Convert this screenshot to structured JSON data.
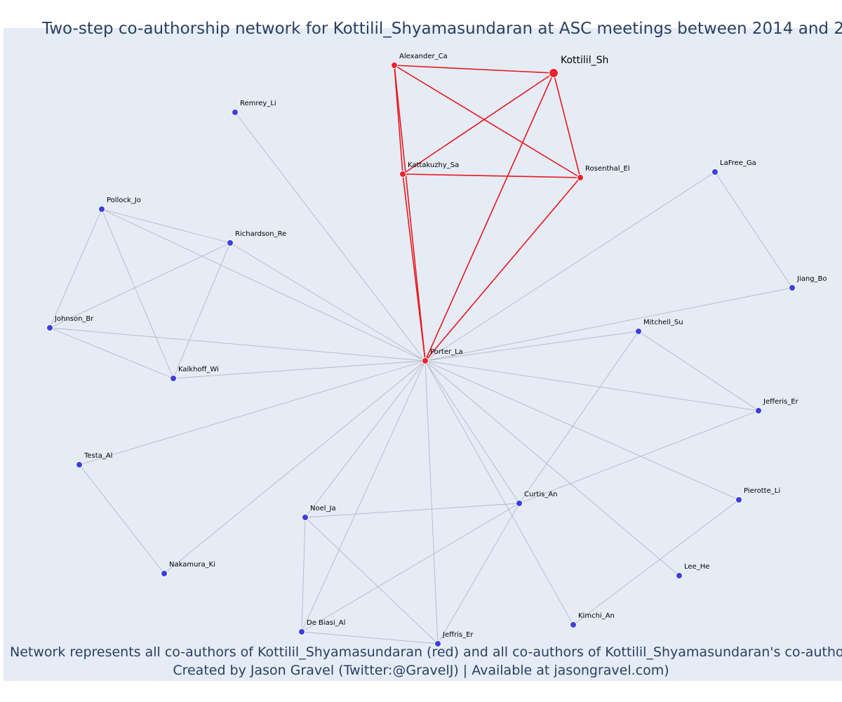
{
  "title": "Two-step co-authorship network for Kottilil_Shyamasundaran at ASC meetings between 2014 and 2",
  "caption_line1": "Network represents all co-authors of Kottilil_Shyamasundaran (red) and all co-authors of Kottilil_Shyamasundaran's co-authors (",
  "caption_line2": "Created by Jason Gravel (Twitter:@GravelJ) | Available at jasongravel.com)",
  "colors": {
    "ego": "#e8242c",
    "alter": "#3d3ee0",
    "ego_edge": "#e8181c",
    "edge": "#b4b9c6",
    "background": "#e5ecf6",
    "text": "#2a3f5f"
  },
  "nodes": [
    {
      "id": "Kottilil_Sh",
      "label": "Kottilil_Sh",
      "group": "focal"
    },
    {
      "id": "Alexander_Ca",
      "label": "Alexander_Ca",
      "group": "red"
    },
    {
      "id": "Kattakuzhy_Sa",
      "label": "Kattakuzhy_Sa",
      "group": "red"
    },
    {
      "id": "Rosenthal_El",
      "label": "Rosenthal_El",
      "group": "red"
    },
    {
      "id": "Porter_La",
      "label": "Porter_La",
      "group": "red"
    },
    {
      "id": "Remrey_Li",
      "label": "Remrey_Li",
      "group": "blue"
    },
    {
      "id": "LaFree_Ga",
      "label": "LaFree_Ga",
      "group": "blue"
    },
    {
      "id": "Pollock_Jo",
      "label": "Pollock_Jo",
      "group": "blue"
    },
    {
      "id": "Richardson_Re",
      "label": "Richardson_Re",
      "group": "blue"
    },
    {
      "id": "Jiang_Bo",
      "label": "Jiang_Bo",
      "group": "blue"
    },
    {
      "id": "Johnson_Br",
      "label": "Johnson_Br",
      "group": "blue"
    },
    {
      "id": "Mitchell_Su",
      "label": "Mitchell_Su",
      "group": "blue"
    },
    {
      "id": "Kalkhoff_Wi",
      "label": "Kalkhoff_Wi",
      "group": "blue"
    },
    {
      "id": "Jefferis_Er",
      "label": "Jefferis_Er",
      "group": "blue"
    },
    {
      "id": "Testa_Al",
      "label": "Testa_Al",
      "group": "blue"
    },
    {
      "id": "Curtis_An",
      "label": "Curtis_An",
      "group": "blue"
    },
    {
      "id": "Pierotte_Li",
      "label": "Pierotte_Li",
      "group": "blue"
    },
    {
      "id": "Noel_Ja",
      "label": "Noel_Ja",
      "group": "blue"
    },
    {
      "id": "Nakamura_Ki",
      "label": "Nakamura_Ki",
      "group": "blue"
    },
    {
      "id": "Lee_He",
      "label": "Lee_He",
      "group": "blue"
    },
    {
      "id": "Kimchi_An",
      "label": "Kimchi_An",
      "group": "blue"
    },
    {
      "id": "De Biasi_Al",
      "label": "De Biasi_Al",
      "group": "blue"
    },
    {
      "id": "Jeffris_Er",
      "label": "Jeffris_Er",
      "group": "blue"
    }
  ],
  "edges": [
    [
      "Alexander_Ca",
      "Kottilil_Sh"
    ],
    [
      "Alexander_Ca",
      "Kattakuzhy_Sa"
    ],
    [
      "Alexander_Ca",
      "Rosenthal_El"
    ],
    [
      "Alexander_Ca",
      "Porter_La"
    ],
    [
      "Kottilil_Sh",
      "Kattakuzhy_Sa"
    ],
    [
      "Kottilil_Sh",
      "Rosenthal_El"
    ],
    [
      "Kottilil_Sh",
      "Porter_La"
    ],
    [
      "Kattakuzhy_Sa",
      "Rosenthal_El"
    ],
    [
      "Kattakuzhy_Sa",
      "Porter_La"
    ],
    [
      "Rosenthal_El",
      "Porter_La"
    ],
    [
      "Porter_La",
      "Remrey_Li"
    ],
    [
      "Porter_La",
      "Pollock_Jo"
    ],
    [
      "Porter_La",
      "Richardson_Re"
    ],
    [
      "Porter_La",
      "Johnson_Br"
    ],
    [
      "Porter_La",
      "Kalkhoff_Wi"
    ],
    [
      "Porter_La",
      "LaFree_Ga"
    ],
    [
      "Porter_La",
      "Jiang_Bo"
    ],
    [
      "Porter_La",
      "Mitchell_Su"
    ],
    [
      "Porter_La",
      "Jefferis_Er"
    ],
    [
      "Porter_La",
      "Testa_Al"
    ],
    [
      "Porter_La",
      "Nakamura_Ki"
    ],
    [
      "Porter_La",
      "Noel_Ja"
    ],
    [
      "Porter_La",
      "De Biasi_Al"
    ],
    [
      "Porter_La",
      "Jeffris_Er"
    ],
    [
      "Porter_La",
      "Curtis_An"
    ],
    [
      "Porter_La",
      "Kimchi_An"
    ],
    [
      "Porter_La",
      "Lee_He"
    ],
    [
      "Porter_La",
      "Pierotte_Li"
    ],
    [
      "Pollock_Jo",
      "Richardson_Re"
    ],
    [
      "Pollock_Jo",
      "Johnson_Br"
    ],
    [
      "Pollock_Jo",
      "Kalkhoff_Wi"
    ],
    [
      "Richardson_Re",
      "Johnson_Br"
    ],
    [
      "Richardson_Re",
      "Kalkhoff_Wi"
    ],
    [
      "Johnson_Br",
      "Kalkhoff_Wi"
    ],
    [
      "LaFree_Ga",
      "Jiang_Bo"
    ],
    [
      "Mitchell_Su",
      "Jefferis_Er"
    ],
    [
      "Mitchell_Su",
      "Curtis_An"
    ],
    [
      "Jefferis_Er",
      "Curtis_An"
    ],
    [
      "Testa_Al",
      "Nakamura_Ki"
    ],
    [
      "Noel_Ja",
      "Curtis_An"
    ],
    [
      "Noel_Ja",
      "De Biasi_Al"
    ],
    [
      "Noel_Ja",
      "Jeffris_Er"
    ],
    [
      "Curtis_An",
      "De Biasi_Al"
    ],
    [
      "Curtis_An",
      "Jeffris_Er"
    ],
    [
      "De Biasi_Al",
      "Jeffris_Er"
    ],
    [
      "Pierotte_Li",
      "Kimchi_An"
    ]
  ]
}
